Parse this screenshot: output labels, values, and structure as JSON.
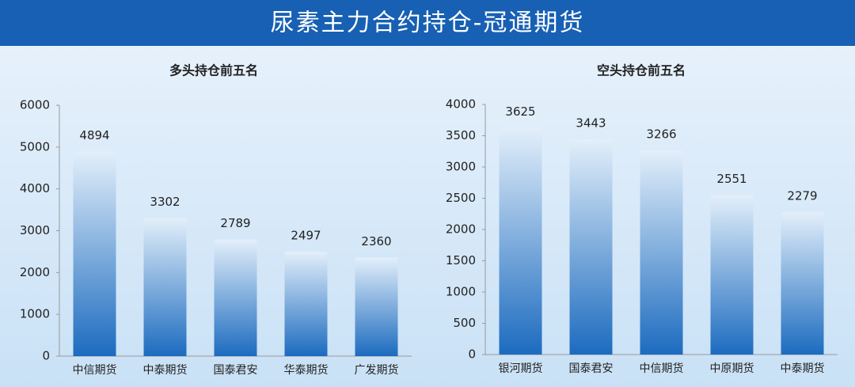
{
  "title": "尿素主力合约持仓-冠通期货",
  "chart_data": [
    {
      "type": "bar",
      "title": "多头持仓前五名",
      "categories": [
        "中信期货",
        "中泰期货",
        "国泰君安",
        "华泰期货",
        "广发期货"
      ],
      "values": [
        4894,
        3302,
        2789,
        2497,
        2360
      ],
      "ylim": [
        0,
        6000
      ],
      "yticks": [
        0,
        1000,
        2000,
        3000,
        4000,
        5000,
        6000
      ]
    },
    {
      "type": "bar",
      "title": "空头持仓前五名",
      "categories": [
        "银河期货",
        "国泰君安",
        "中信期货",
        "中原期货",
        "中泰期货"
      ],
      "values": [
        3625,
        3443,
        3266,
        2551,
        2279
      ],
      "ylim": [
        0,
        4000
      ],
      "yticks": [
        0,
        500,
        1000,
        1500,
        2000,
        2500,
        3000,
        3500,
        4000
      ]
    }
  ]
}
